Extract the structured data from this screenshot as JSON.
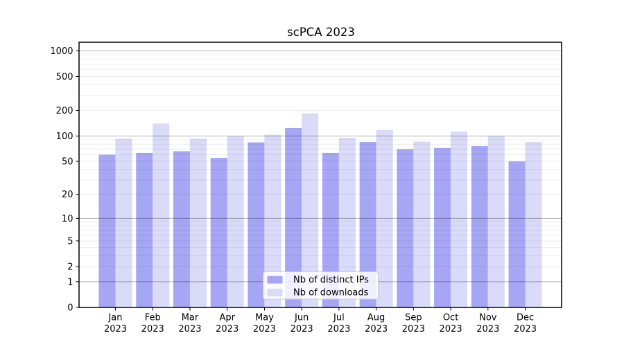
{
  "title": "scPCA 2023",
  "chart_data": {
    "type": "bar",
    "title": "scPCA 2023",
    "categories": [
      "Jan",
      "Feb",
      "Mar",
      "Apr",
      "May",
      "Jun",
      "Jul",
      "Aug",
      "Sep",
      "Oct",
      "Nov",
      "Dec"
    ],
    "year_label": "2023",
    "series": [
      {
        "name": "Nb of distinct IPs",
        "color": "#a6a6f4",
        "values": [
          60,
          63,
          66,
          55,
          84,
          124,
          63,
          85,
          70,
          72,
          76,
          50
        ]
      },
      {
        "name": "Nb of downloads",
        "color": "#dadaf9",
        "values": [
          93,
          140,
          93,
          100,
          103,
          185,
          95,
          118,
          86,
          113,
          100,
          85
        ]
      }
    ],
    "yscale": "log1p",
    "ylim": [
      0,
      1259
    ],
    "yticks": [
      1000,
      500,
      200,
      100,
      50,
      20,
      10,
      5,
      2,
      1,
      0
    ],
    "grid": {
      "major": [
        1,
        10,
        100,
        1000
      ],
      "minor": [
        2,
        3,
        4,
        5,
        6,
        7,
        8,
        9,
        20,
        30,
        40,
        50,
        60,
        70,
        80,
        90,
        200,
        300,
        400,
        500,
        600,
        700,
        800,
        900
      ]
    },
    "legend_position": "lower center",
    "xlabel": "",
    "ylabel": ""
  }
}
